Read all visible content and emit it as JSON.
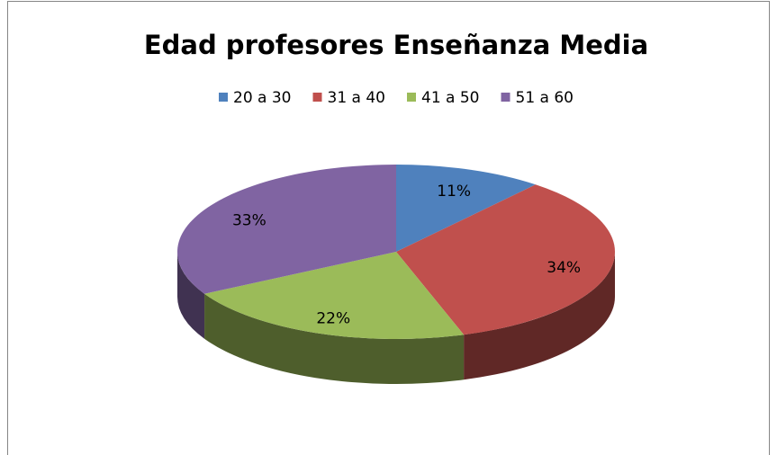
{
  "chart_data": {
    "type": "pie",
    "title": "Edad profesores Enseñanza Media",
    "categories": [
      "20 a 30",
      "31 a 40",
      "41 a 50",
      "51 a 60"
    ],
    "values": [
      11,
      34,
      22,
      33
    ],
    "value_labels": [
      "11%",
      "34%",
      "22%",
      "33%"
    ],
    "colors": [
      "#4f81bd",
      "#c0504d",
      "#9bbb59",
      "#8064a2"
    ],
    "legend": "top"
  }
}
